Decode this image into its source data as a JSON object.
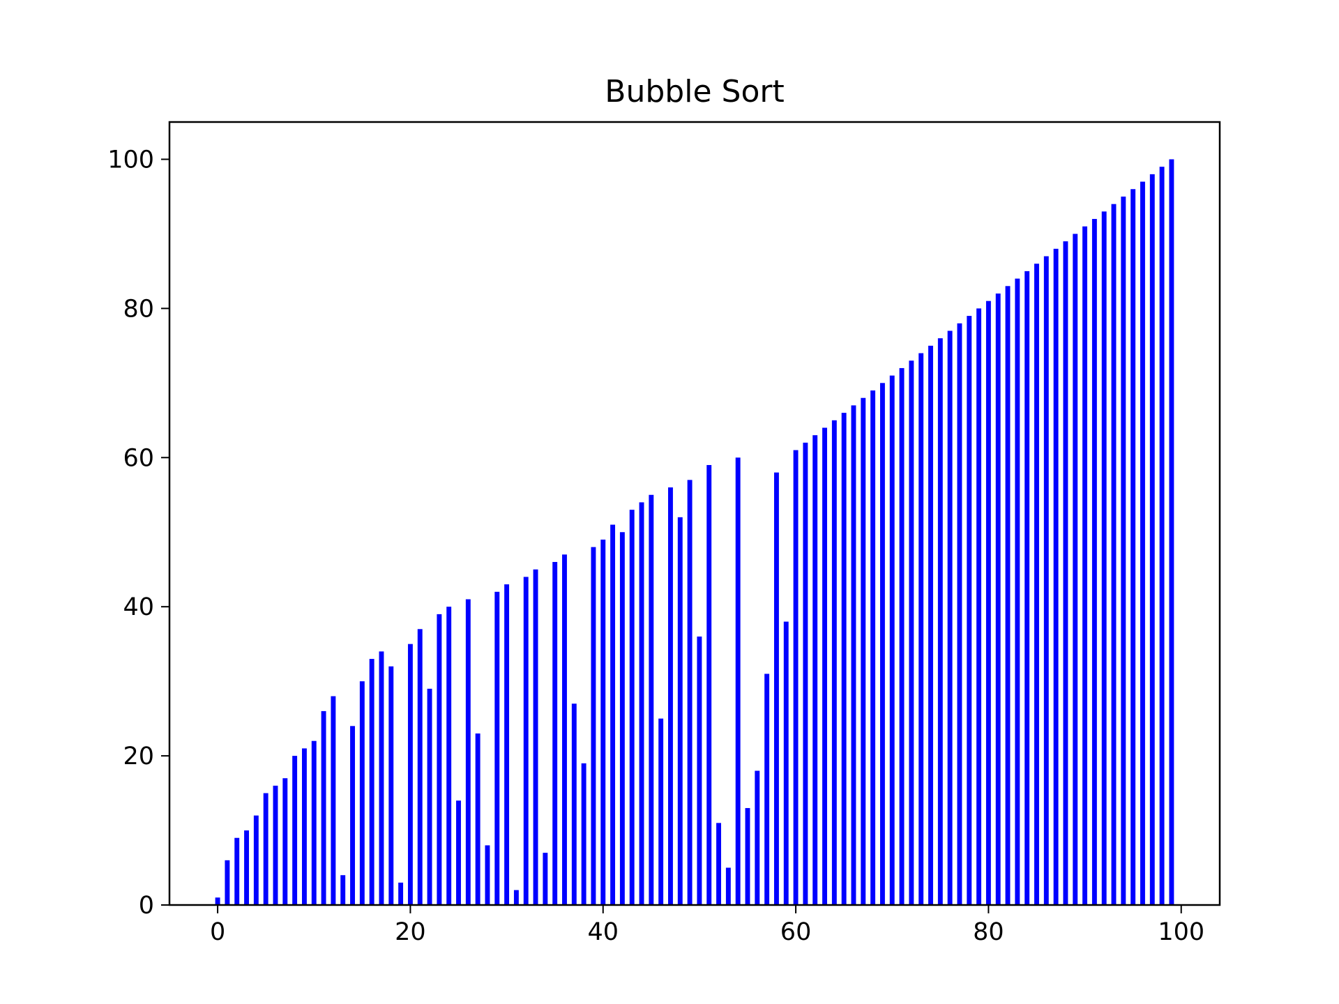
{
  "chart_data": {
    "type": "bar",
    "title": "Bubble Sort",
    "xlabel": "",
    "ylabel": "",
    "bar_color": "#0000ff",
    "xlim": [
      -5,
      104
    ],
    "ylim": [
      0,
      105
    ],
    "x_ticks": [
      0,
      20,
      40,
      60,
      80,
      100
    ],
    "y_ticks": [
      0,
      20,
      40,
      60,
      80,
      100
    ],
    "x_tick_labels": [
      "0",
      "20",
      "40",
      "60",
      "80",
      "100"
    ],
    "y_tick_labels": [
      "0",
      "20",
      "40",
      "60",
      "80",
      "100"
    ],
    "grid": false,
    "x": [
      0,
      1,
      2,
      3,
      4,
      5,
      6,
      7,
      8,
      9,
      10,
      11,
      12,
      13,
      14,
      15,
      16,
      17,
      18,
      19,
      20,
      21,
      22,
      23,
      24,
      25,
      26,
      27,
      28,
      29,
      30,
      31,
      32,
      33,
      34,
      35,
      36,
      37,
      38,
      39,
      40,
      41,
      42,
      43,
      44,
      45,
      46,
      47,
      48,
      49,
      50,
      51,
      52,
      53,
      54,
      55,
      56,
      57,
      58,
      59,
      60,
      61,
      62,
      63,
      64,
      65,
      66,
      67,
      68,
      69,
      70,
      71,
      72,
      73,
      74,
      75,
      76,
      77,
      78,
      79,
      80,
      81,
      82,
      83,
      84,
      85,
      86,
      87,
      88,
      89,
      90,
      91,
      92,
      93,
      94,
      95,
      96,
      97,
      98,
      99
    ],
    "values": [
      1,
      6,
      9,
      10,
      12,
      15,
      16,
      17,
      20,
      21,
      22,
      26,
      28,
      4,
      24,
      30,
      33,
      34,
      32,
      3,
      35,
      37,
      29,
      39,
      40,
      14,
      41,
      23,
      8,
      42,
      43,
      2,
      44,
      45,
      7,
      46,
      47,
      27,
      19,
      48,
      49,
      51,
      50,
      53,
      54,
      55,
      25,
      56,
      52,
      57,
      36,
      59,
      11,
      5,
      60,
      13,
      18,
      31,
      58,
      38,
      61,
      62,
      63,
      64,
      65,
      66,
      67,
      68,
      69,
      70,
      71,
      72,
      73,
      74,
      75,
      76,
      77,
      78,
      79,
      80,
      81,
      82,
      83,
      84,
      85,
      86,
      87,
      88,
      89,
      90,
      91,
      92,
      93,
      94,
      95,
      96,
      97,
      98,
      99,
      100
    ]
  }
}
